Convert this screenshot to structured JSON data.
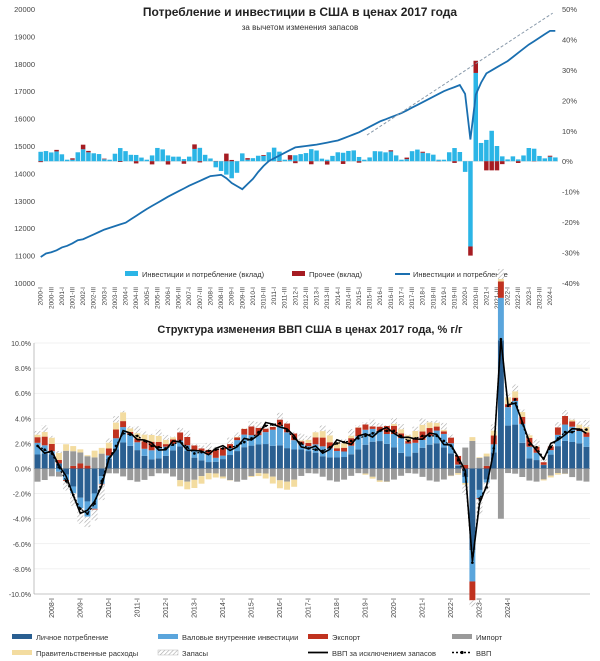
{
  "chart_data": [
    {
      "type": "bar+line",
      "title": "Потребление и инвестиции в США в ценах 2017 года",
      "subtitle": "за вычетом изменения запасов",
      "left_axis": {
        "ylim": [
          10000,
          20000
        ],
        "ticks": [
          "10000",
          "11000",
          "12000",
          "13000",
          "14000",
          "15000",
          "16000",
          "17000",
          "18000",
          "19000",
          "20000"
        ]
      },
      "right_axis": {
        "ylim": [
          -40,
          50
        ],
        "ticks": [
          "-40%",
          "-30%",
          "-20%",
          "-10%",
          "0%",
          "10%",
          "20%",
          "30%",
          "40%",
          "50%"
        ]
      },
      "x_labels": [
        "2000-I",
        "2000-III",
        "2001-I",
        "2001-III",
        "2002-I",
        "2002-III",
        "2003-I",
        "2003-III",
        "2004-I",
        "2004-III",
        "2005-I",
        "2005-III",
        "2006-I",
        "2006-III",
        "2007-I",
        "2007-III",
        "2008-I",
        "2008-III",
        "2009-I",
        "2009-III",
        "2010-I",
        "2010-III",
        "2011-I",
        "2011-III",
        "2012-I",
        "2012-III",
        "2013-I",
        "2013-III",
        "2014-I",
        "2014-III",
        "2015-I",
        "2015-III",
        "2016-I",
        "2016-III",
        "2017-I",
        "2017-III",
        "2018-I",
        "2018-III",
        "2019-I",
        "2019-III",
        "2020-I",
        "2020-III",
        "2021-I",
        "2021-III",
        "2022-I",
        "2022-III",
        "2023-I",
        "2023-III",
        "2024-I"
      ],
      "legend": [
        "Инвестиции и потребление (вклад)",
        "Прочее (вклад)",
        "Инвестиции и потребление"
      ],
      "colors": {
        "contrib": "#2bb5e6",
        "other": "#a61c22",
        "line": "#1a6fb0",
        "trend": "#8899aa"
      },
      "series_line_level_anchors": [
        [
          0,
          10950
        ],
        [
          2,
          11450
        ],
        [
          4,
          11600
        ],
        [
          6,
          11950
        ],
        [
          8,
          12200
        ],
        [
          10,
          12700
        ],
        [
          12,
          13150
        ],
        [
          14,
          13550
        ],
        [
          16,
          13900
        ],
        [
          18,
          14000
        ],
        [
          20,
          14150
        ],
        [
          22,
          14550
        ],
        [
          24,
          14950
        ],
        [
          26,
          15050
        ],
        [
          28,
          15200
        ],
        [
          30,
          15500
        ],
        [
          32,
          15900
        ],
        [
          34,
          16200
        ],
        [
          36,
          16600
        ],
        [
          38,
          17000
        ],
        [
          40,
          17300
        ],
        [
          42,
          17650
        ],
        [
          44,
          18100
        ],
        [
          46,
          18700
        ],
        [
          48,
          19200
        ]
      ]
    },
    {
      "type": "stacked-bar+line",
      "title": "Структура изменения ВВП США в ценах 2017 года, % г/г",
      "ylim": [
        -10,
        10
      ],
      "y_ticks": [
        "-10.0%",
        "-8.0%",
        "-6.0%",
        "-4.0%",
        "-2.0%",
        "0.0%",
        "2.0%",
        "4.0%",
        "6.0%",
        "8.0%",
        "10.0%"
      ],
      "x_labels": [
        "2008-I",
        "2009-I",
        "2010-I",
        "2011-I",
        "2012-I",
        "2013-I",
        "2014-I",
        "2015-I",
        "2016-I",
        "2017-I",
        "2018-I",
        "2019-I",
        "2020-I",
        "2021-I",
        "2022-I",
        "2023-I",
        "2024-I"
      ],
      "legend": [
        "Личное потребление",
        "Валовые внутренние инвестиции",
        "Экспорт",
        "Импорт",
        "Правительственные расходы",
        "Запасы",
        "ВВП за исключением запасов",
        "ВВП"
      ],
      "colors": {
        "consumption": "#2a5f91",
        "investment": "#5aa5dc",
        "export": "#c0321f",
        "import": "#9a9a9a",
        "government": "#f3dca0",
        "inventories": "#c8c8c8",
        "gdp_ex_inv": "#000000",
        "gdp": "#000000"
      },
      "gdp_anchors": [
        [
          0,
          1.8
        ],
        [
          2,
          1.2
        ],
        [
          4,
          -1.0
        ],
        [
          6,
          -3.2
        ],
        [
          7,
          -3.6
        ],
        [
          8,
          -2.8
        ],
        [
          10,
          0.8
        ],
        [
          12,
          2.8
        ],
        [
          14,
          2.6
        ],
        [
          16,
          1.8
        ],
        [
          18,
          1.6
        ],
        [
          20,
          2.2
        ],
        [
          22,
          1.2
        ],
        [
          24,
          1.4
        ],
        [
          26,
          1.6
        ],
        [
          28,
          1.8
        ],
        [
          30,
          2.4
        ],
        [
          32,
          3.4
        ],
        [
          34,
          3.6
        ],
        [
          36,
          2.4
        ],
        [
          38,
          1.6
        ],
        [
          40,
          1.4
        ],
        [
          42,
          2.0
        ],
        [
          44,
          2.2
        ],
        [
          46,
          2.6
        ],
        [
          48,
          3.0
        ],
        [
          50,
          3.0
        ],
        [
          52,
          2.2
        ],
        [
          54,
          2.6
        ],
        [
          56,
          2.6
        ],
        [
          58,
          1.8
        ],
        [
          60,
          -0.5
        ],
        [
          61,
          -7.5
        ],
        [
          62,
          -2.4
        ],
        [
          63,
          -1.5
        ],
        [
          64,
          1.6
        ],
        [
          65,
          12.2
        ],
        [
          66,
          5.0
        ],
        [
          67,
          5.5
        ],
        [
          68,
          3.6
        ],
        [
          69,
          1.9
        ],
        [
          70,
          1.7
        ],
        [
          71,
          0.8
        ],
        [
          72,
          1.7
        ],
        [
          73,
          2.4
        ],
        [
          74,
          2.9
        ],
        [
          75,
          2.9
        ],
        [
          76,
          3.1
        ]
      ]
    }
  ],
  "chart1": {
    "title": "Потребление и инвестиции в США в ценах 2017 года",
    "subtitle": "за вычетом изменения запасов",
    "left_ticks": [
      "20000",
      "19000",
      "18000",
      "17000",
      "16000",
      "15000",
      "14000",
      "13000",
      "12000",
      "11000",
      "10000"
    ],
    "right_ticks": [
      "50%",
      "40%",
      "30%",
      "20%",
      "10%",
      "0%",
      "-10%",
      "-20%",
      "-30%",
      "-40%"
    ],
    "legend": [
      "Инвестиции и потребление (вклад)",
      "Прочее (вклад)",
      "Инвестиции и потребление"
    ]
  },
  "chart2": {
    "title": "Структура изменения ВВП США в ценах 2017 года, % г/г",
    "y_ticks": [
      "10.0%",
      "8.0%",
      "6.0%",
      "4.0%",
      "2.0%",
      "0.0%",
      "-2.0%",
      "-4.0%",
      "-6.0%",
      "-8.0%",
      "-10.0%"
    ],
    "legend": [
      "Личное потребление",
      "Валовые внутренние инвестиции",
      "Экспорт",
      "Импорт",
      "Правительственные расходы",
      "Запасы",
      "ВВП за исключением запасов",
      "ВВП"
    ]
  }
}
